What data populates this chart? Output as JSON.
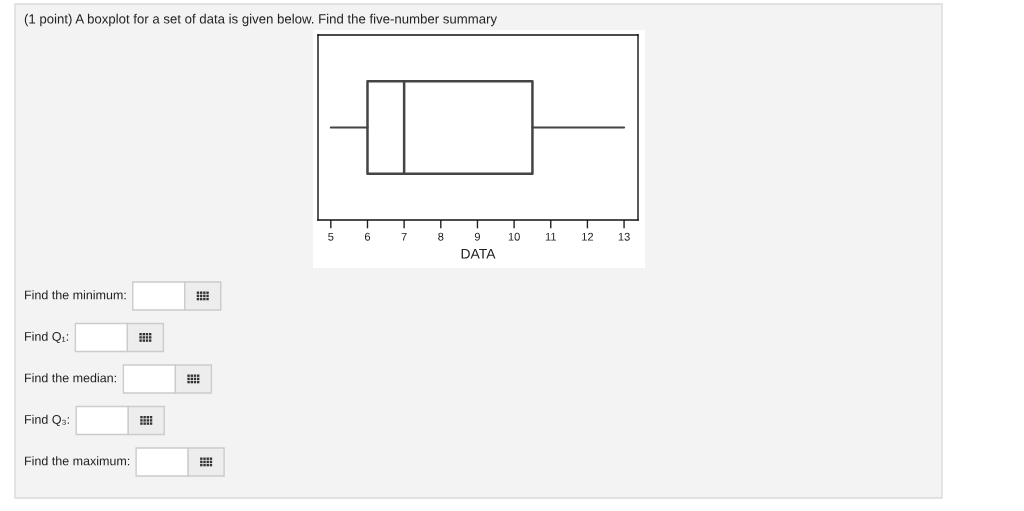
{
  "chart_data": {
    "type": "box",
    "title": "(1 point) A boxplot for a set of data is given below. Find the five-number summary",
    "xlabel": "DATA",
    "orientation": "horizontal",
    "categories": [
      null
    ],
    "series": [
      {
        "color": "#444444",
        "boxes": [
          {
            "low": 5,
            "q1": 6,
            "median": 7,
            "q3": 10.5,
            "high": 13
          }
        ]
      }
    ],
    "xlim": [
      4.65,
      13.38
    ],
    "xticks": [
      5,
      6,
      7,
      8,
      9,
      10,
      11,
      12,
      13
    ],
    "tick_labels": "x",
    "annotations": [
      "Find the minimum:",
      "Find Q₁:",
      "Find the median:",
      "Find Q₃:",
      "Find the maximum:"
    ]
  }
}
